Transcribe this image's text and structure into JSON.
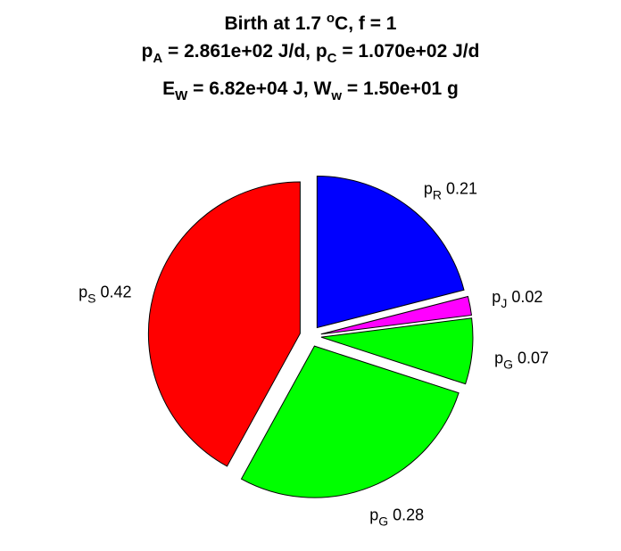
{
  "chart_data": {
    "type": "pie",
    "title": {
      "line1": {
        "pre": "Birth at 1.7 ",
        "sup": "o",
        "post": "C, f = 1"
      },
      "line2": {
        "a1": "p",
        "a2": "A",
        "a3": " = 2.861e+02 J/d, ",
        "b1": "p",
        "b2": "C",
        "b3": " = 1.070e+02 J/d"
      },
      "line3": {
        "a1": "E",
        "a2": "W",
        "a3": " = 6.82e+04 J, ",
        "b1": "W",
        "b2": "w",
        "b3": " = 1.50e+01 g"
      }
    },
    "slices": [
      {
        "symbol": "p",
        "subscript": "R",
        "label_value": "0.21",
        "fraction": 0.21,
        "color": "#0000ff",
        "exploded": true
      },
      {
        "symbol": "p",
        "subscript": "J",
        "label_value": "0.02",
        "fraction": 0.02,
        "color": "#ff00ff",
        "exploded": true
      },
      {
        "symbol": "p",
        "subscript": "G",
        "label_value": "0.07",
        "fraction": 0.07,
        "color": "#00ff00",
        "exploded": true
      },
      {
        "symbol": "p",
        "subscript": "G",
        "label_value": "0.28",
        "fraction": 0.28,
        "color": "#00ff00",
        "exploded": true
      },
      {
        "symbol": "p",
        "subscript": "S",
        "label_value": "0.42",
        "fraction": 0.42,
        "color": "#ff0000",
        "exploded": true
      }
    ]
  }
}
